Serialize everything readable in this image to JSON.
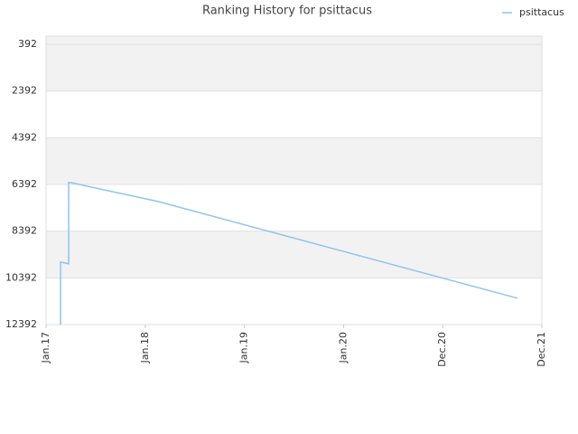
{
  "chart_data": {
    "type": "line",
    "title": "Ranking History for psittacus",
    "inverted_y": true,
    "xlim": [
      0,
      5
    ],
    "xticks": [
      {
        "value": 0,
        "label": "Jan.17"
      },
      {
        "value": 1,
        "label": "Jan.18"
      },
      {
        "value": 2,
        "label": "Jan.19"
      },
      {
        "value": 3,
        "label": "Jan.20"
      },
      {
        "value": 4,
        "label": "Dec.20"
      },
      {
        "value": 5,
        "label": "Dec.21"
      }
    ],
    "ylim": [
      42,
      12392
    ],
    "yticks": [
      392,
      2392,
      4392,
      6392,
      8392,
      10392,
      12392
    ],
    "legend": "top-right",
    "series": [
      {
        "name": "psittacus",
        "color": "#8ec4ec",
        "x": [
          0.146,
          0.146,
          0.228,
          0.228,
          0.246,
          1.13,
          4.754
        ],
        "values": [
          12392,
          9715,
          9790,
          6311,
          6311,
          7123,
          11262
        ]
      }
    ]
  }
}
